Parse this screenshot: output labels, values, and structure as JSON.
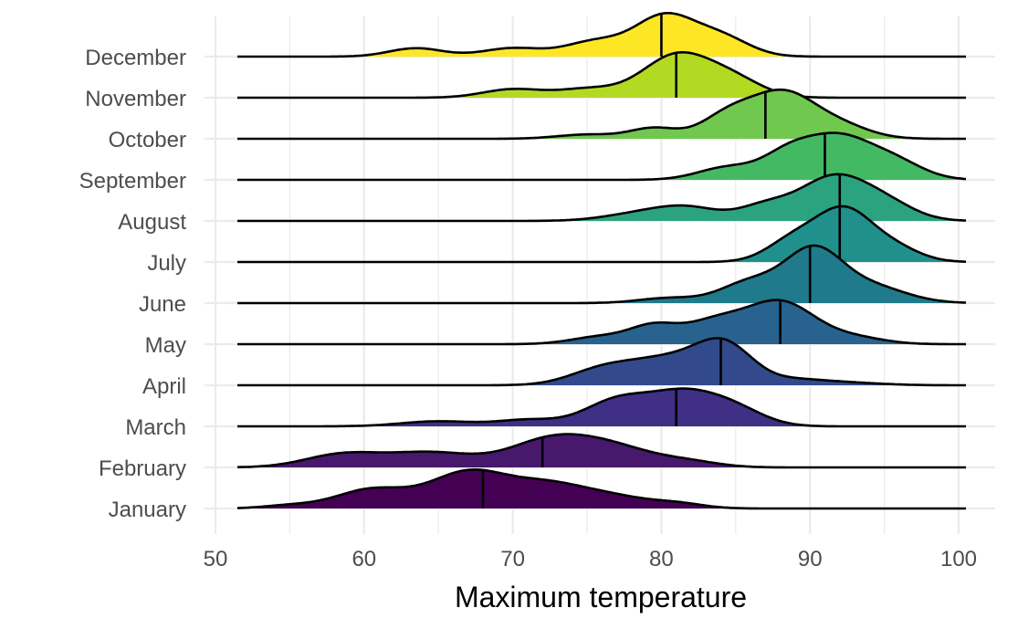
{
  "chart_data": {
    "type": "ridgeline",
    "title": "",
    "xlabel": "Maximum temperature",
    "ylabel": "",
    "xlim": [
      50,
      100
    ],
    "x_ticks": [
      50,
      60,
      70,
      80,
      90,
      100
    ],
    "grid": true,
    "legend": "none",
    "color_scale": "viridis",
    "series": [
      {
        "name": "January",
        "color": "#440154",
        "median": 68,
        "peaks": [
          [
            55,
            0.07,
            1.8
          ],
          [
            60.5,
            0.45,
            2.4
          ],
          [
            67,
            0.85,
            2.6
          ],
          [
            72.5,
            0.55,
            2.6
          ],
          [
            77,
            0.22,
            2.2
          ],
          [
            81,
            0.12,
            1.8
          ]
        ]
      },
      {
        "name": "February",
        "color": "#47186c",
        "median": 72,
        "peaks": [
          [
            58.5,
            0.3,
            2.5
          ],
          [
            64.5,
            0.35,
            3.0
          ],
          [
            72,
            0.45,
            2.6
          ],
          [
            76,
            0.55,
            3.2
          ],
          [
            82,
            0.1,
            2.0
          ]
        ]
      },
      {
        "name": "March",
        "color": "#3f2f85",
        "median": 81,
        "peaks": [
          [
            65,
            0.12,
            2.5
          ],
          [
            71,
            0.15,
            2.0
          ],
          [
            77,
            0.6,
            2.2
          ],
          [
            81.5,
            0.75,
            2.3
          ],
          [
            85,
            0.35,
            2.0
          ]
        ]
      },
      {
        "name": "April",
        "color": "#324a8b",
        "median": 84,
        "peaks": [
          [
            76,
            0.35,
            2.2
          ],
          [
            80.5,
            0.6,
            2.6
          ],
          [
            84.3,
            0.88,
            1.9
          ],
          [
            89,
            0.1,
            1.8
          ],
          [
            92,
            0.07,
            2.5
          ]
        ]
      },
      {
        "name": "May",
        "color": "#27638e",
        "median": 88,
        "peaks": [
          [
            76,
            0.18,
            2.0
          ],
          [
            79.5,
            0.4,
            1.6
          ],
          [
            83.5,
            0.5,
            2.0
          ],
          [
            88,
            1.0,
            2.3
          ],
          [
            93,
            0.15,
            2.0
          ]
        ]
      },
      {
        "name": "June",
        "color": "#1f7a8c",
        "median": 90,
        "peaks": [
          [
            80.5,
            0.12,
            2.0
          ],
          [
            86,
            0.5,
            2.0
          ],
          [
            90.2,
            1.2,
            1.9
          ],
          [
            94,
            0.4,
            2.4
          ]
        ]
      },
      {
        "name": "July",
        "color": "#20908c",
        "median": 92,
        "peaks": [
          [
            89,
            0.55,
            1.8
          ],
          [
            92.3,
            1.15,
            1.8
          ],
          [
            95.5,
            0.35,
            1.8
          ]
        ]
      },
      {
        "name": "August",
        "color": "#2ba37f",
        "median": 92,
        "peaks": [
          [
            79,
            0.2,
            2.5
          ],
          [
            82,
            0.25,
            2.0
          ],
          [
            87,
            0.35,
            1.8
          ],
          [
            91.5,
            1.0,
            2.2
          ],
          [
            95,
            0.4,
            2.0
          ]
        ]
      },
      {
        "name": "September",
        "color": "#44b963",
        "median": 91,
        "peaks": [
          [
            84.5,
            0.3,
            2.0
          ],
          [
            88.5,
            0.55,
            1.7
          ],
          [
            91.8,
            0.95,
            2.1
          ],
          [
            95.5,
            0.45,
            2.0
          ]
        ]
      },
      {
        "name": "October",
        "color": "#70c84e",
        "median": 87,
        "peaks": [
          [
            75,
            0.1,
            2.0
          ],
          [
            79.5,
            0.25,
            1.6
          ],
          [
            84.5,
            0.55,
            1.8
          ],
          [
            88.2,
            1.05,
            2.1
          ],
          [
            92,
            0.3,
            2.0
          ]
        ]
      },
      {
        "name": "November",
        "color": "#b2da23",
        "median": 81,
        "peaks": [
          [
            70,
            0.2,
            2.0
          ],
          [
            75,
            0.2,
            2.0
          ],
          [
            81,
            1.0,
            2.3
          ],
          [
            84.8,
            0.4,
            2.0
          ]
        ]
      },
      {
        "name": "December",
        "color": "#fde725",
        "median": 80,
        "peaks": [
          [
            63.5,
            0.2,
            1.8
          ],
          [
            70,
            0.2,
            2.0
          ],
          [
            75.5,
            0.35,
            2.0
          ],
          [
            80.2,
            0.95,
            2.0
          ],
          [
            84,
            0.45,
            1.9
          ]
        ]
      }
    ]
  }
}
